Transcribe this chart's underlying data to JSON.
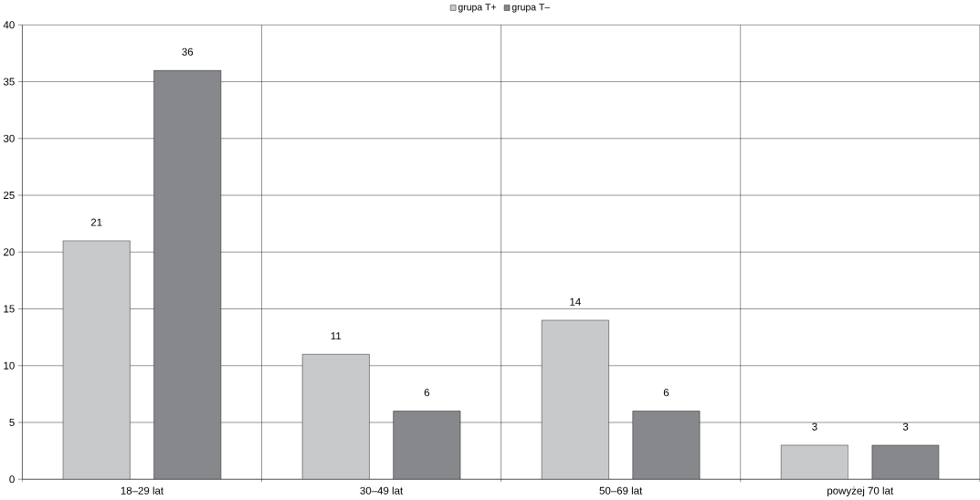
{
  "chart_data": {
    "type": "bar",
    "categories": [
      "18–29 lat",
      "30–49 lat",
      "50–69 lat",
      "powyżej 70 lat"
    ],
    "series": [
      {
        "name": "grupa T+",
        "color": "#c8c9cb",
        "values": [
          21,
          11,
          14,
          3
        ]
      },
      {
        "name": "grupa T–",
        "color": "#87888c",
        "values": [
          36,
          6,
          6,
          3
        ]
      }
    ],
    "ylim": [
      0,
      40
    ],
    "yticks": [
      0,
      5,
      10,
      15,
      20,
      25,
      30,
      35,
      40
    ],
    "grid": true,
    "legend": "top",
    "data_labels": true
  }
}
